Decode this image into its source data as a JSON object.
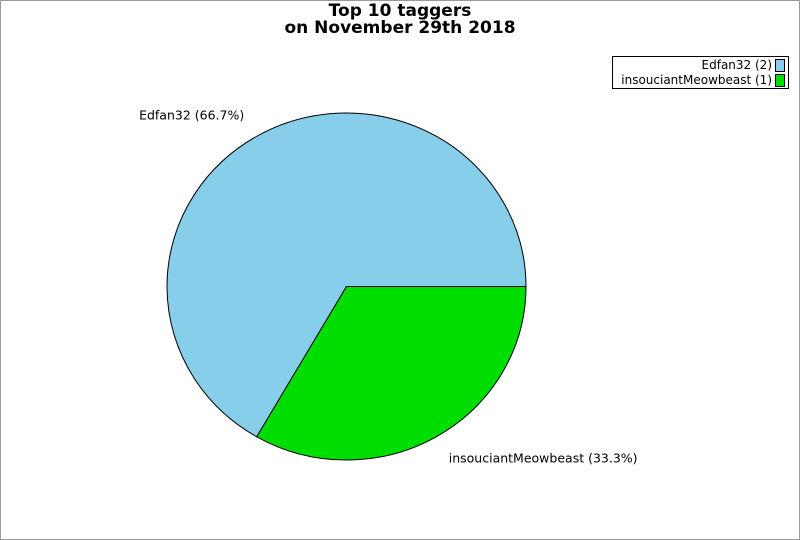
{
  "page": {
    "background": "#ffffff",
    "border_color": "#999999"
  },
  "chart_data": {
    "type": "pie",
    "title": "Top 10 taggers",
    "subtitle": "on November 29th 2018",
    "slices": [
      {
        "label": "Edfan32",
        "value": 2,
        "percent": "66.7%",
        "callout": "Edfan32 (66.7%)",
        "color": "#87CEEB"
      },
      {
        "label": "insouciantMeowbeast",
        "value": 1,
        "percent": "33.3%",
        "callout": "insouciantMeowbeast (33.3%)",
        "color": "#00DD00"
      }
    ],
    "legend": {
      "position": "top-right",
      "entries": [
        {
          "label": "Edfan32 (2)",
          "color": "#87CEEB"
        },
        {
          "label": "insouciantMeowbeast (1)",
          "color": "#00DD00"
        }
      ]
    },
    "start_angle_deg": 0,
    "direction": "counterclockwise",
    "outline_color": "#000000"
  }
}
